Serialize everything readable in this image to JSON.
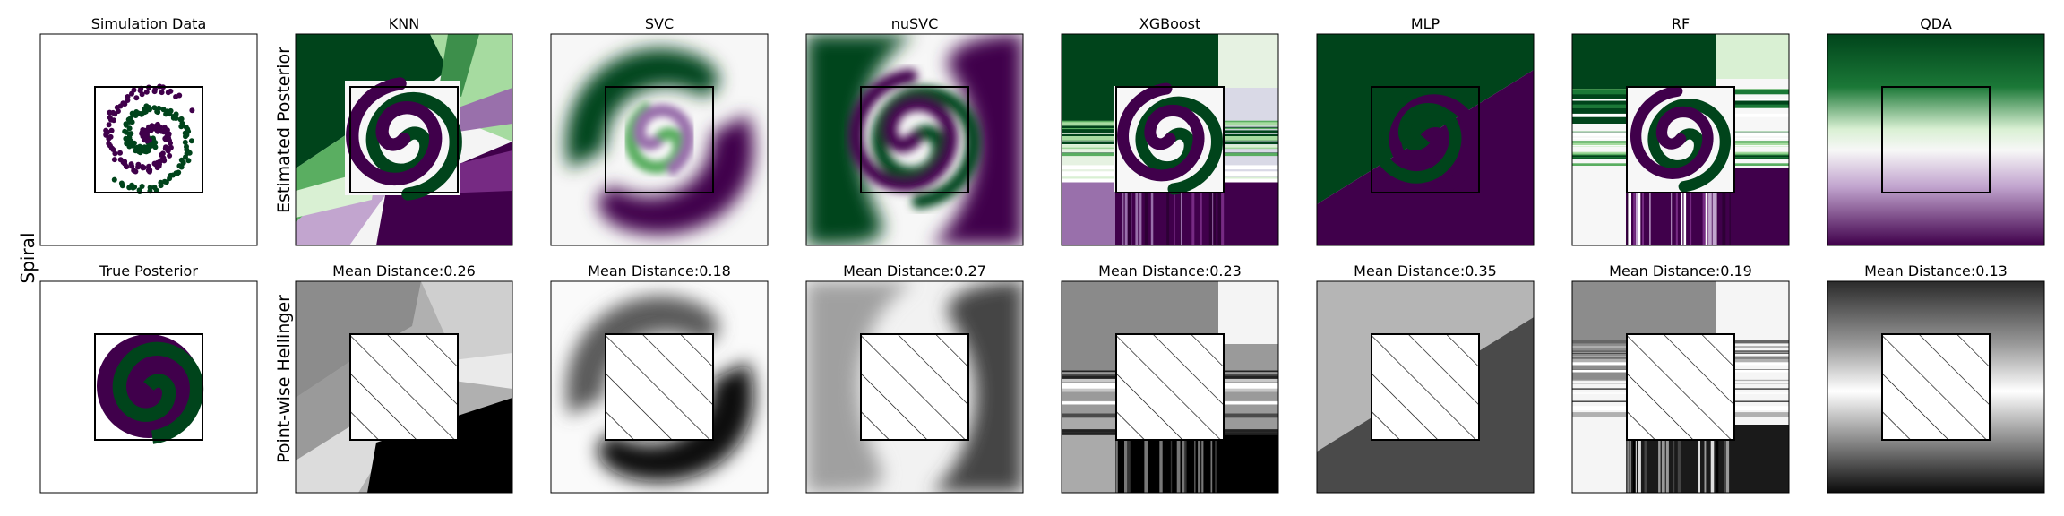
{
  "figure": {
    "group_label": "Spiral",
    "row_labels": [
      "Estimated Posterior",
      "Point-wise Hellinger"
    ],
    "colors": {
      "class0": "#00441b",
      "class1": "#40004b",
      "frame": "#000000"
    }
  },
  "chart_data": [
    {
      "type": "scatter",
      "title": "Simulation Data",
      "description_series": [
        {
          "name": "",
          "points": "two interleaved spiral classes"
        }
      ],
      "classes": [
        "#00441b",
        "#40004b"
      ]
    },
    {
      "type": "heatmap",
      "title": "True Posterior",
      "colormap": "PRGn",
      "pattern": "spiral"
    },
    {
      "type": "heatmap",
      "title": "KNN",
      "row": "Estimated Posterior",
      "colormap": "PRGn"
    },
    {
      "type": "heatmap",
      "title": "SVC",
      "row": "Estimated Posterior",
      "colormap": "PRGn"
    },
    {
      "type": "heatmap",
      "title": "nuSVC",
      "row": "Estimated Posterior",
      "colormap": "PRGn"
    },
    {
      "type": "heatmap",
      "title": "XGBoost",
      "row": "Estimated Posterior",
      "colormap": "PRGn"
    },
    {
      "type": "heatmap",
      "title": "MLP",
      "row": "Estimated Posterior",
      "colormap": "PRGn"
    },
    {
      "type": "heatmap",
      "title": "RF",
      "row": "Estimated Posterior",
      "colormap": "PRGn"
    },
    {
      "type": "heatmap",
      "title": "QDA",
      "row": "Estimated Posterior",
      "colormap": "PRGn"
    },
    {
      "type": "heatmap",
      "title": "Mean Distance:0.26",
      "row": "Point-wise Hellinger",
      "model": "KNN",
      "mean_distance": 0.26,
      "colormap": "gray"
    },
    {
      "type": "heatmap",
      "title": "Mean Distance:0.18",
      "row": "Point-wise Hellinger",
      "model": "SVC",
      "mean_distance": 0.18,
      "colormap": "gray"
    },
    {
      "type": "heatmap",
      "title": "Mean Distance:0.27",
      "row": "Point-wise Hellinger",
      "model": "nuSVC",
      "mean_distance": 0.27,
      "colormap": "gray"
    },
    {
      "type": "heatmap",
      "title": "Mean Distance:0.23",
      "row": "Point-wise Hellinger",
      "model": "XGBoost",
      "mean_distance": 0.23,
      "colormap": "gray"
    },
    {
      "type": "heatmap",
      "title": "Mean Distance:0.35",
      "row": "Point-wise Hellinger",
      "model": "MLP",
      "mean_distance": 0.35,
      "colormap": "gray"
    },
    {
      "type": "heatmap",
      "title": "Mean Distance:0.19",
      "row": "Point-wise Hellinger",
      "model": "RF",
      "mean_distance": 0.19,
      "colormap": "gray"
    },
    {
      "type": "heatmap",
      "title": "Mean Distance:0.13",
      "row": "Point-wise Hellinger",
      "model": "QDA",
      "mean_distance": 0.13,
      "colormap": "gray"
    }
  ]
}
